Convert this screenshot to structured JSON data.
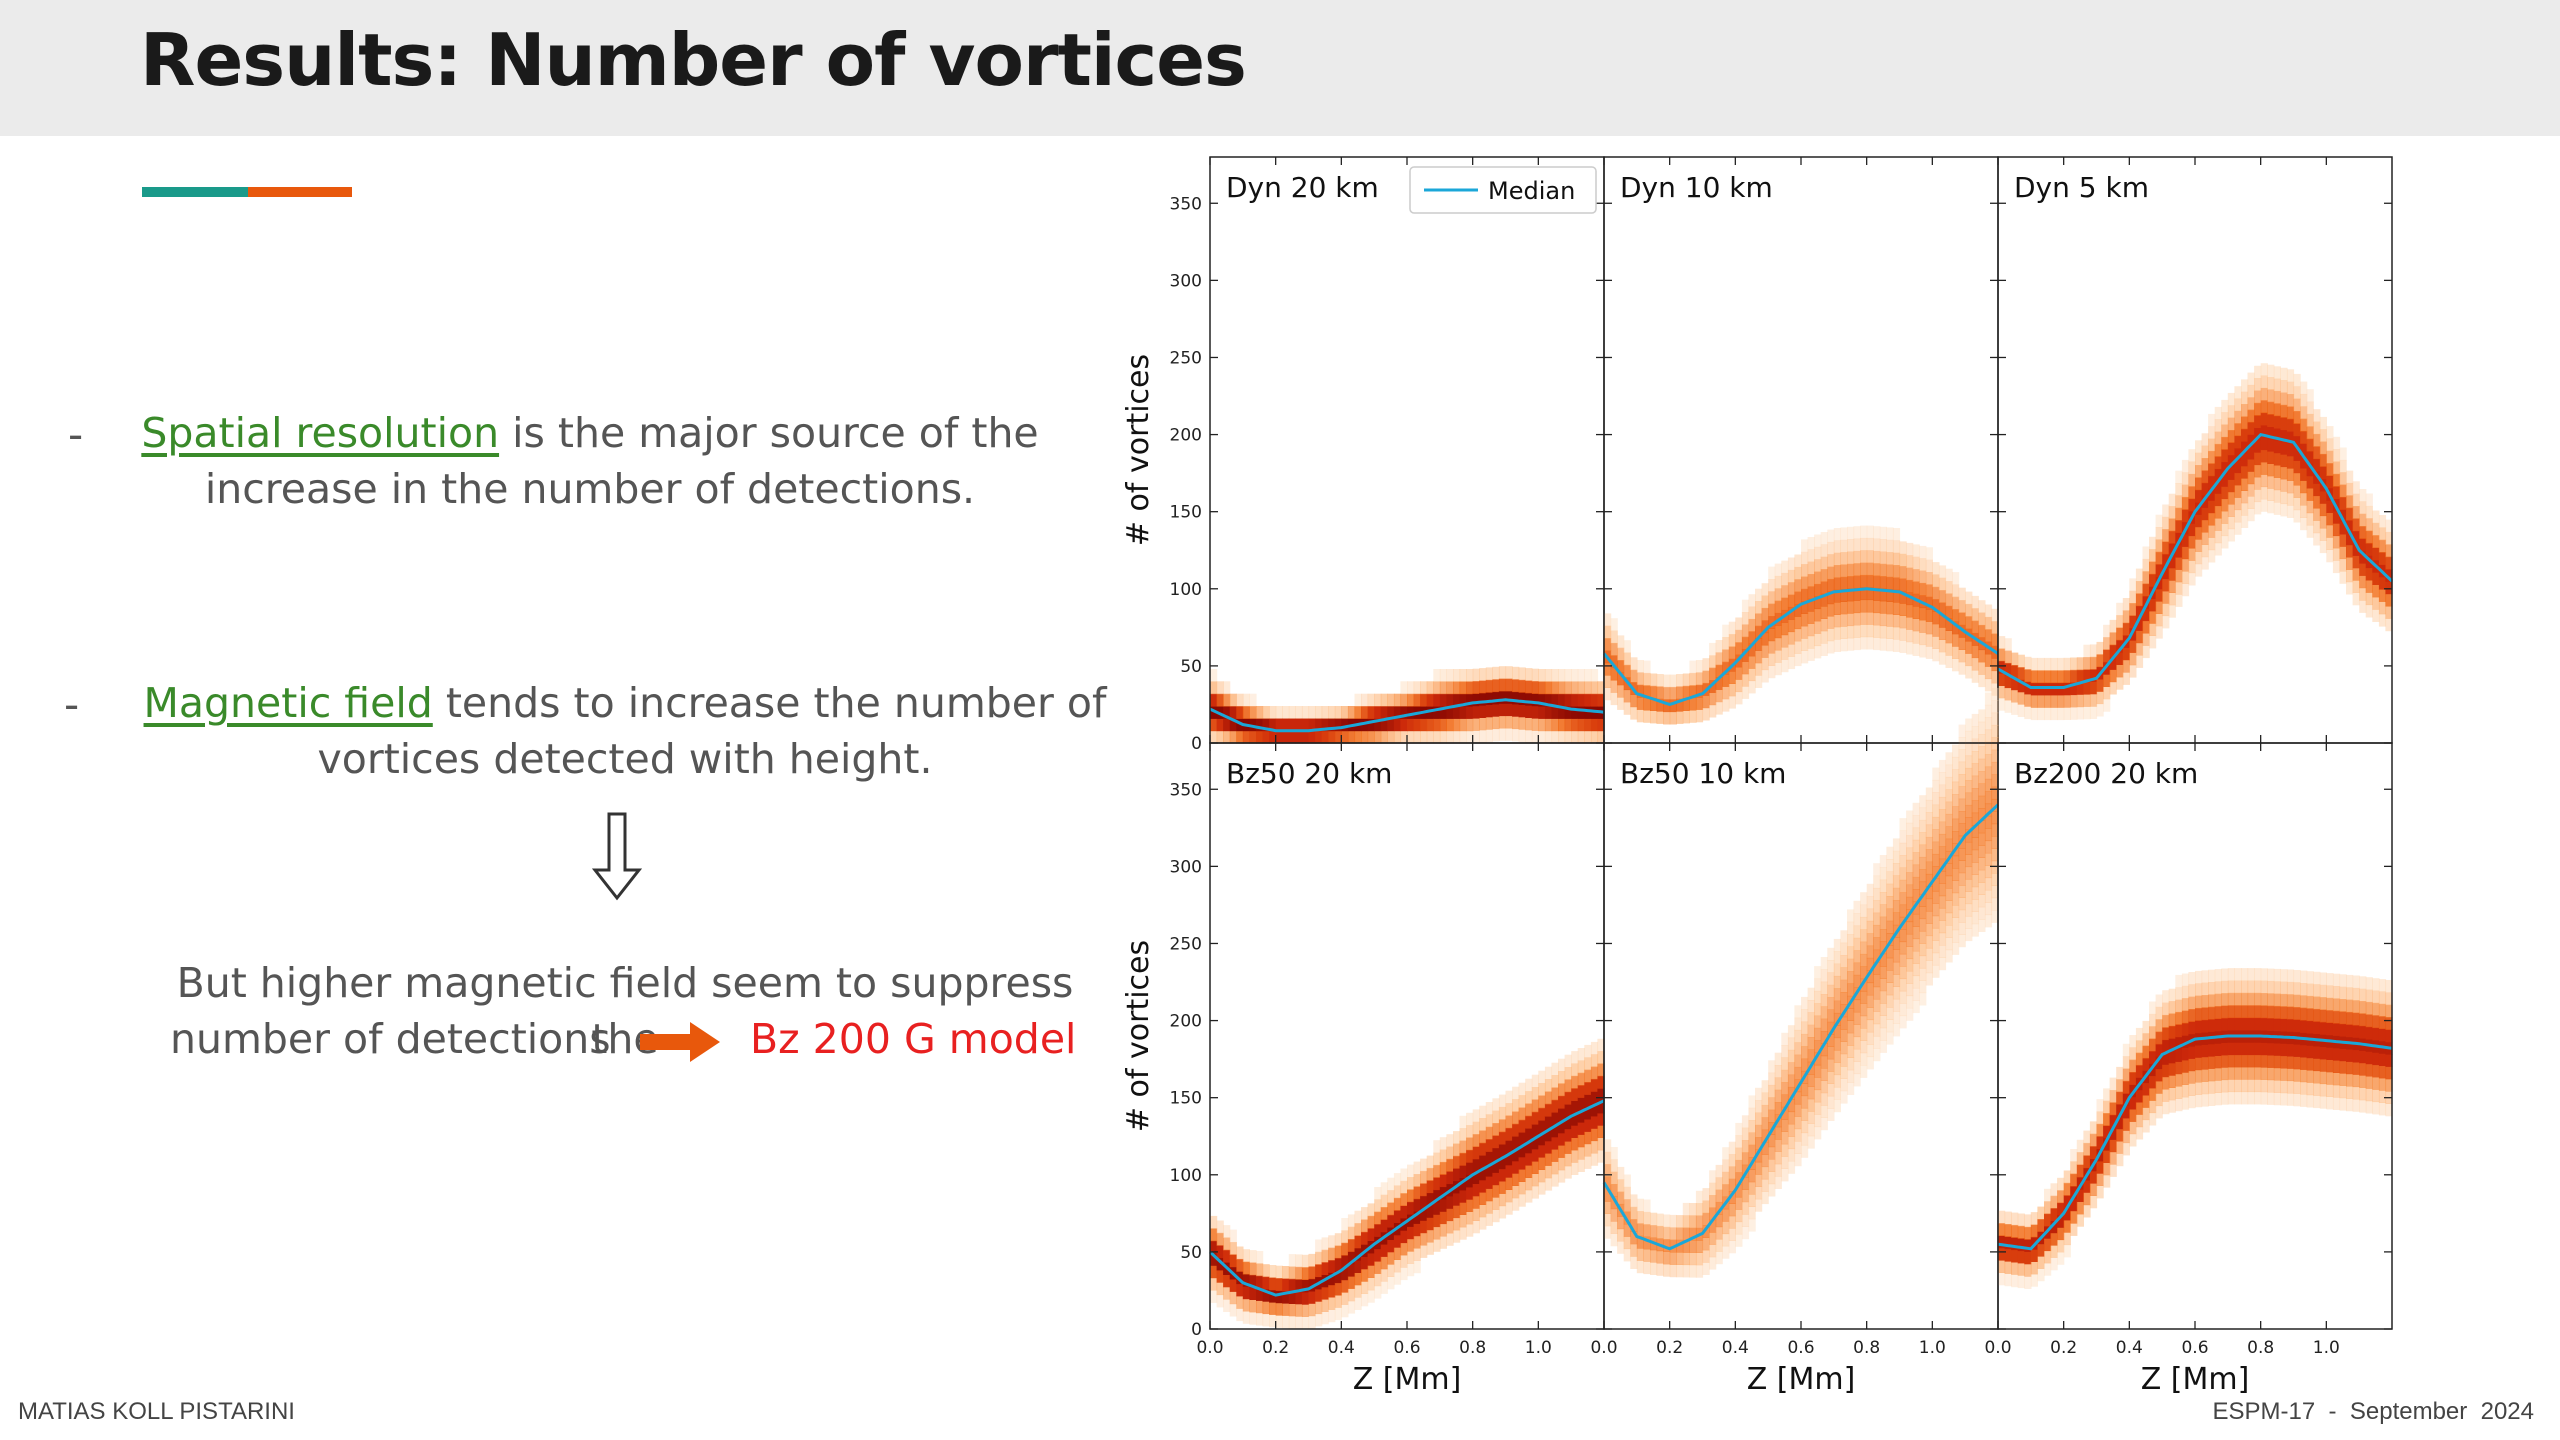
{
  "slide": {
    "title": "Results: Number of vortices",
    "bullet1": {
      "dash": "-",
      "highlight": "Spatial resolution",
      "text_a": " is the major source of the",
      "text_b": "increase in the number of detections."
    },
    "bullet2": {
      "dash": "-",
      "highlight": "Magnetic field",
      "text_a": " tends to increase the number of",
      "text_b": "vortices detected with height."
    },
    "conclusion": {
      "line1": "But higher magnetic field seem to suppress the",
      "line2": "number of detections",
      "model": "Bz 200 G model"
    },
    "footer_left": "MATIAS KOLL PISTARINI",
    "footer_right": "ESPM-17  -  September  2024"
  },
  "colors": {
    "median": "#1ba7d8",
    "heat_dark": "#8b0000",
    "heat_light": "#fdd8b0",
    "teal": "#1a9a8a",
    "orange": "#e8580c"
  },
  "chart_data": {
    "type": "heatmap",
    "xlabel": "Z [Mm]",
    "ylabel": "# of vortices",
    "xlim": [
      0,
      1.2
    ],
    "ylim": [
      0,
      380
    ],
    "xticks": [
      0.0,
      0.2,
      0.4,
      0.6,
      0.8,
      1.0
    ],
    "xtick_labels": [
      "0.0",
      "0.2",
      "0.4",
      "0.6",
      "0.8",
      "1.0"
    ],
    "yticks": [
      0,
      50,
      100,
      150,
      200,
      250,
      300,
      350
    ],
    "ytick_labels": [
      "0",
      "50",
      "100",
      "150",
      "200",
      "250",
      "300",
      "350"
    ],
    "legend": {
      "label": "Median",
      "position": "top-right of first panel"
    },
    "panels": [
      {
        "title": "Dyn 20 km",
        "x": [
          0.0,
          0.1,
          0.2,
          0.3,
          0.4,
          0.5,
          0.6,
          0.7,
          0.8,
          0.9,
          1.0,
          1.1,
          1.2
        ],
        "median": [
          22,
          12,
          8,
          8,
          10,
          14,
          18,
          22,
          26,
          28,
          26,
          22,
          20
        ],
        "spread": [
          10,
          8,
          6,
          6,
          6,
          8,
          8,
          10,
          10,
          10,
          10,
          10,
          10
        ],
        "intensity": 0.95
      },
      {
        "title": "Dyn 10 km",
        "x": [
          0.0,
          0.1,
          0.2,
          0.3,
          0.4,
          0.5,
          0.6,
          0.7,
          0.8,
          0.9,
          1.0,
          1.1,
          1.2
        ],
        "median": [
          58,
          32,
          25,
          32,
          52,
          75,
          90,
          98,
          100,
          98,
          88,
          72,
          58
        ],
        "spread": [
          14,
          10,
          8,
          10,
          14,
          16,
          18,
          18,
          18,
          18,
          16,
          14,
          14
        ],
        "intensity": 0.55
      },
      {
        "title": "Dyn 5 km",
        "x": [
          0.0,
          0.1,
          0.2,
          0.3,
          0.4,
          0.5,
          0.6,
          0.7,
          0.8,
          0.9,
          1.0,
          1.1,
          1.2
        ],
        "median": [
          48,
          36,
          36,
          42,
          68,
          110,
          150,
          178,
          200,
          195,
          165,
          125,
          105
        ],
        "spread": [
          10,
          8,
          8,
          10,
          14,
          18,
          20,
          22,
          22,
          22,
          20,
          18,
          16
        ],
        "intensity": 0.75
      },
      {
        "title": "Bz50 20 km",
        "x": [
          0.0,
          0.1,
          0.2,
          0.3,
          0.4,
          0.5,
          0.6,
          0.7,
          0.8,
          0.9,
          1.0,
          1.1,
          1.2
        ],
        "median": [
          50,
          30,
          22,
          26,
          38,
          55,
          70,
          85,
          100,
          112,
          125,
          138,
          148
        ],
        "spread": [
          12,
          10,
          8,
          10,
          12,
          14,
          14,
          16,
          18,
          18,
          18,
          18,
          18
        ],
        "intensity": 0.9
      },
      {
        "title": "Bz50 10 km",
        "x": [
          0.0,
          0.1,
          0.2,
          0.3,
          0.4,
          0.5,
          0.6,
          0.7,
          0.8,
          0.9,
          1.0,
          1.1,
          1.2
        ],
        "median": [
          95,
          60,
          52,
          62,
          90,
          125,
          160,
          195,
          228,
          260,
          290,
          320,
          340
        ],
        "spread": [
          16,
          12,
          10,
          14,
          18,
          22,
          26,
          28,
          30,
          32,
          34,
          36,
          38
        ],
        "intensity": 0.45
      },
      {
        "title": "Bz200 20 km",
        "x": [
          0.0,
          0.1,
          0.2,
          0.3,
          0.4,
          0.5,
          0.6,
          0.7,
          0.8,
          0.9,
          1.0,
          1.1,
          1.2
        ],
        "median": [
          55,
          52,
          75,
          110,
          150,
          178,
          188,
          190,
          190,
          189,
          187,
          185,
          182
        ],
        "spread": [
          10,
          10,
          12,
          14,
          16,
          18,
          20,
          20,
          20,
          20,
          20,
          20,
          20
        ],
        "intensity": 0.8
      }
    ]
  }
}
